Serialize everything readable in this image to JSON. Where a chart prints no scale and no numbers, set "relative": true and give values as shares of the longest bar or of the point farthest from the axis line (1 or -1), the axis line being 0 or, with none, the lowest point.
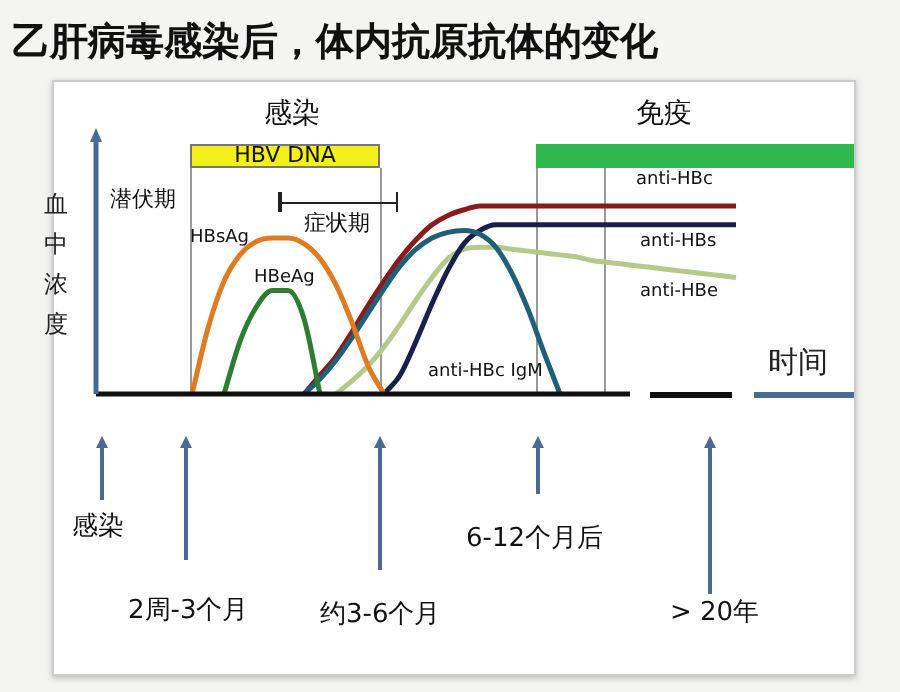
{
  "chart_data": {
    "type": "line",
    "title": "乙肝病毒感染后，体内抗原抗体的变化",
    "xlabel": "时间",
    "ylabel": "血中浓度",
    "relative": true,
    "legend": false,
    "grid": false,
    "tick_labels": false,
    "marker": "none",
    "categories": [
      null,
      null,
      null,
      null,
      null,
      null,
      null,
      null,
      null,
      null,
      null,
      null,
      null,
      null,
      null,
      null,
      null,
      null,
      null,
      null,
      null,
      null,
      null,
      null,
      null,
      null,
      null,
      null,
      null,
      null,
      null,
      null,
      null,
      null,
      null,
      null,
      null,
      null,
      null,
      null,
      null
    ],
    "series": [
      {
        "name": "HBsAg",
        "color": "#e07b20",
        "values": [
          null,
          null,
          null,
          null,
          null,
          null,
          0,
          0.35,
          0.6,
          0.74,
          0.81,
          0.83,
          0.83,
          0.8,
          0.72,
          0.58,
          0.38,
          0.15,
          0,
          null,
          null,
          null,
          null,
          null,
          null,
          null,
          null,
          null,
          null,
          null,
          null,
          null,
          null,
          null,
          null,
          null,
          null,
          null,
          null,
          null,
          null
        ]
      },
      {
        "name": "HBeAg",
        "color": "#2e7d32",
        "values": [
          null,
          null,
          null,
          null,
          null,
          null,
          null,
          null,
          0,
          0.28,
          0.46,
          0.55,
          0.55,
          0.4,
          0,
          null,
          null,
          null,
          null,
          null,
          null,
          null,
          null,
          null,
          null,
          null,
          null,
          null,
          null,
          null,
          null,
          null,
          null,
          null,
          null,
          null,
          null,
          null,
          null,
          null,
          null
        ]
      },
      {
        "name": "anti-HBc IgM",
        "color": "#1f5f7a",
        "values": [
          null,
          null,
          null,
          null,
          null,
          null,
          null,
          null,
          null,
          null,
          null,
          null,
          null,
          0,
          0.08,
          0.18,
          0.3,
          0.43,
          0.56,
          0.68,
          0.77,
          0.83,
          0.86,
          0.87,
          0.85,
          0.78,
          0.64,
          0.45,
          0.22,
          0,
          null,
          null,
          null,
          null,
          null,
          null,
          null,
          null,
          null,
          null,
          null
        ]
      },
      {
        "name": "anti-HBc",
        "color": "#8b1a1a",
        "values": [
          null,
          null,
          null,
          null,
          null,
          null,
          null,
          null,
          null,
          null,
          null,
          null,
          null,
          0,
          0.1,
          0.2,
          0.33,
          0.47,
          0.6,
          0.72,
          0.82,
          0.9,
          0.95,
          0.98,
          1,
          1,
          1,
          1,
          1,
          1,
          1,
          1,
          1,
          1,
          1,
          1,
          1,
          1,
          1,
          1,
          1
        ]
      },
      {
        "name": "anti-HBs",
        "color": "#1a1f4e",
        "values": [
          null,
          null,
          null,
          null,
          null,
          null,
          null,
          null,
          null,
          null,
          null,
          null,
          null,
          null,
          null,
          null,
          null,
          null,
          0,
          0.1,
          0.28,
          0.48,
          0.66,
          0.8,
          0.87,
          0.9,
          0.9,
          0.9,
          0.9,
          0.9,
          0.9,
          0.9,
          0.9,
          0.9,
          0.9,
          0.9,
          0.9,
          0.9,
          0.9,
          0.9,
          0.9
        ]
      },
      {
        "name": "anti-HBe",
        "color": "#b5c98a",
        "values": [
          null,
          null,
          null,
          null,
          null,
          null,
          null,
          null,
          null,
          null,
          null,
          null,
          null,
          null,
          null,
          0,
          0.07,
          0.15,
          0.25,
          0.37,
          0.5,
          0.62,
          0.72,
          0.77,
          0.78,
          0.78,
          0.77,
          0.76,
          0.75,
          0.74,
          0.73,
          0.71,
          0.7,
          0.69,
          0.68,
          0.67,
          0.66,
          0.65,
          0.64,
          0.63,
          0.62
        ]
      }
    ],
    "annotations": [
      "感染",
      "HBV DNA",
      "免疫",
      "潜伏期",
      "症状期",
      "感染",
      "2周-3个月",
      "约3-6个月",
      "6-12个月后",
      "> 20年"
    ]
  }
}
